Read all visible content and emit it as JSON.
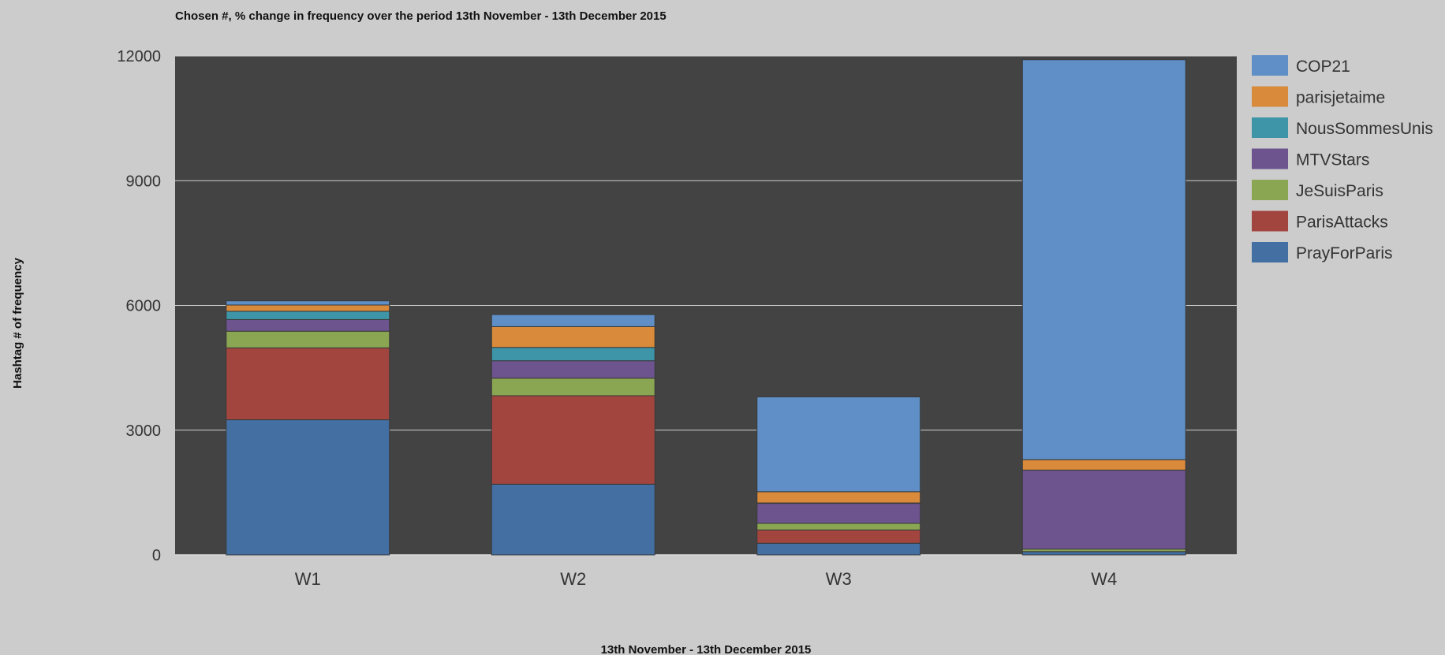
{
  "chart_data": {
    "type": "bar",
    "stacked": true,
    "title": "Chosen #, % change in frequency over the period 13th November - 13th December 2015",
    "xlabel": "13th November - 13th December 2015",
    "ylabel": "Hashtag # of frequency",
    "categories": [
      "W1",
      "W2",
      "W3",
      "W4"
    ],
    "ylim": [
      0,
      12000
    ],
    "yticks": [
      "0",
      "3000",
      "6000",
      "9000",
      "12000"
    ],
    "grid": true,
    "legend_position": "right",
    "plot_background": "#434343",
    "series": [
      {
        "name": "PrayForParis",
        "color": "#436fa3",
        "values": [
          3250,
          1700,
          280,
          80
        ]
      },
      {
        "name": "ParisAttacks",
        "color": "#a3453f",
        "values": [
          1730,
          2130,
          320,
          0
        ]
      },
      {
        "name": "JeSuisParis",
        "color": "#8aa652",
        "values": [
          400,
          420,
          160,
          60
        ]
      },
      {
        "name": "MTVStars",
        "color": "#6d548f",
        "values": [
          280,
          420,
          480,
          1900
        ]
      },
      {
        "name": "NousSommesUnis",
        "color": "#3e95a8",
        "values": [
          200,
          320,
          10,
          0
        ]
      },
      {
        "name": "parisjetaime",
        "color": "#d98a3b",
        "values": [
          150,
          500,
          270,
          250
        ]
      },
      {
        "name": "COP21",
        "color": "#5f8fc6",
        "values": [
          100,
          290,
          2280,
          9620
        ]
      }
    ]
  }
}
